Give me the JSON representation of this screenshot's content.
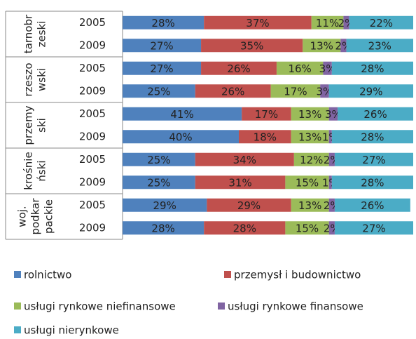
{
  "chart_data": {
    "type": "bar",
    "orientation": "horizontal",
    "stacked": true,
    "groups": [
      {
        "label_lines": [
          "tarnobr",
          "zeski"
        ],
        "years": [
          "2005",
          "2009"
        ]
      },
      {
        "label_lines": [
          "rzeszo",
          "wski"
        ],
        "years": [
          "2005",
          "2009"
        ]
      },
      {
        "label_lines": [
          "przemy",
          "ski"
        ],
        "years": [
          "2005",
          "2009"
        ]
      },
      {
        "label_lines": [
          "krośnie",
          "ński"
        ],
        "years": [
          "2005",
          "2009"
        ]
      },
      {
        "label_lines": [
          "woj.",
          "podkar",
          "packie"
        ],
        "years": [
          "2005",
          "2009"
        ]
      }
    ],
    "xlim": [
      0,
      100
    ],
    "series": [
      {
        "name": "rolnictwo",
        "color": "#4f81bd",
        "values": [
          28,
          27,
          27,
          25,
          41,
          40,
          25,
          25,
          29,
          28
        ],
        "value_labels": [
          "28%",
          "27%",
          "27%",
          "25%",
          "41%",
          "40%",
          "25%",
          "25%",
          "29%",
          "28%"
        ]
      },
      {
        "name": "przemysł i budownictwo",
        "color": "#c0504d",
        "values": [
          37,
          35,
          26,
          26,
          17,
          18,
          34,
          31,
          29,
          28
        ],
        "value_labels": [
          "37%",
          "35%",
          "26%",
          "26%",
          "17%",
          "18%",
          "34%",
          "31%",
          "29%",
          "28%"
        ]
      },
      {
        "name": "usługi rynkowe niefinansowe",
        "color": "#9bbb59",
        "values": [
          11,
          13,
          16,
          17,
          13,
          13,
          12,
          15,
          13,
          15
        ],
        "value_labels": [
          "11%",
          "13%",
          "16%",
          "17%",
          "13%",
          "13%",
          "12%",
          "15%",
          "13%",
          "15%"
        ]
      },
      {
        "name": "usługi rynkowe finansowe",
        "color": "#8064a2",
        "values": [
          2,
          2,
          3,
          3,
          3,
          1,
          2,
          1,
          2,
          2
        ],
        "value_labels": [
          "2%",
          "2%",
          "3%",
          "3%",
          "3%",
          "1%",
          "2%",
          "1%",
          "2%",
          "2%"
        ]
      },
      {
        "name": "usługi nierynkowe",
        "color": "#4bacc6",
        "values": [
          22,
          23,
          28,
          29,
          26,
          28,
          27,
          28,
          26,
          27
        ],
        "value_labels": [
          "22%",
          "23%",
          "28%",
          "29%",
          "26%",
          "28%",
          "27%",
          "28%",
          "26%",
          "27%"
        ]
      }
    ]
  }
}
